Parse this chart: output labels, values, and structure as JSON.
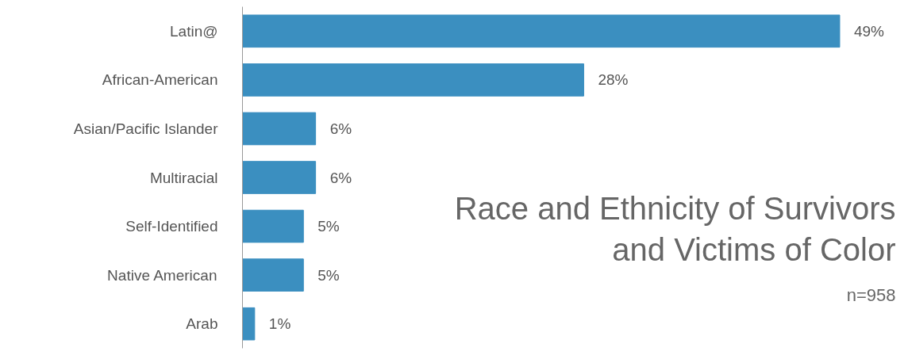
{
  "chart_data": {
    "type": "bar",
    "orientation": "horizontal",
    "title": "Race and Ethnicity of Survivors and Victims of Color",
    "subtitle": "n=958",
    "categories": [
      "Latin@",
      "African-American",
      "Asian/Pacific Islander",
      "Multiracial",
      "Self-Identified",
      "Native American",
      "Arab"
    ],
    "values": [
      49,
      28,
      6,
      6,
      5,
      5,
      1
    ],
    "color": "#3b8fc0",
    "data_labels": true,
    "value_labels": [
      "49%",
      "28%",
      "6%",
      "6%",
      "5%",
      "5%",
      "1%"
    ],
    "grid": false,
    "tick_labels": "y"
  }
}
